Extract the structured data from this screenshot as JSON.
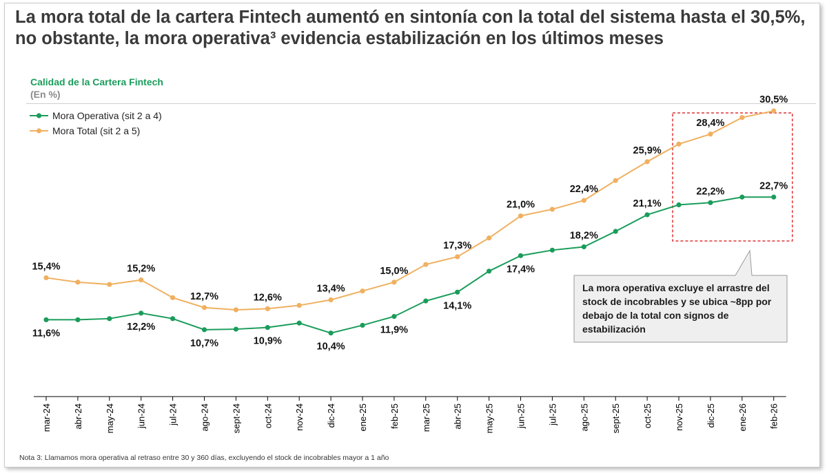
{
  "headline": "La mora total de la cartera Fintech aumentó en sintonía con la total del sistema hasta el 30,5%, no obstante, la mora operativa³  evidencia estabilización en los últimos meses",
  "subtitle": "Calidad de la Cartera Fintech",
  "unit": "(En %)",
  "footnote": "Nota 3: Llamamos mora operativa al retraso entre 30 y 360 días, excluyendo el stock de incobrables mayor a 1 año",
  "callout": {
    "lines": [
      "La mora operativa excluye el  arrastre del",
      "stock de incobrables y se ubica ~8pp por",
      "debajo de la total con signos de",
      "estabilización"
    ]
  },
  "colors": {
    "operativa": "#1a9c5b",
    "total": "#f0b060",
    "highlight": "#e03030"
  },
  "chart_data": {
    "type": "line",
    "title": "Calidad de la Cartera Fintech",
    "ylabel": "(En %)",
    "legend_position": "top-left",
    "grid": false,
    "categories": [
      "mar-24",
      "abr-24",
      "may-24",
      "jun-24",
      "jul-24",
      "ago-24",
      "sept-24",
      "oct-24",
      "nov-24",
      "dic-24",
      "ene-25",
      "feb-25",
      "mar-25",
      "abr-25",
      "may-25",
      "jun-25",
      "jul-25",
      "ago-25",
      "sept-25",
      "oct-25",
      "nov-25",
      "dic-25",
      "ene-26",
      "feb-26"
    ],
    "series": [
      {
        "name": "Mora Operativa (sit 2 a 4)",
        "values": [
          11.6,
          11.6,
          11.7,
          12.2,
          11.7,
          10.7,
          10.75,
          10.9,
          11.3,
          10.4,
          11.1,
          11.9,
          13.3,
          14.1,
          16.0,
          17.4,
          17.9,
          18.2,
          19.6,
          21.1,
          22.0,
          22.2,
          22.7,
          22.7
        ],
        "labels": [
          [
            "0",
            "11,6%"
          ],
          [
            "3",
            "12,2%"
          ],
          [
            "5",
            "10,7%"
          ],
          [
            "7",
            "10,9%"
          ],
          [
            "9",
            "10,4%"
          ],
          [
            "11",
            "11,9%"
          ],
          [
            "13",
            "14,1%"
          ],
          [
            "15",
            "17,4%"
          ],
          [
            "17",
            "18,2%"
          ],
          [
            "19",
            "21,1%"
          ],
          [
            "21",
            "22,2%"
          ],
          [
            "23",
            "22,7%"
          ]
        ]
      },
      {
        "name": "Mora Total (sit 2 a 5)",
        "values": [
          15.4,
          15.0,
          14.8,
          15.2,
          13.6,
          12.7,
          12.5,
          12.6,
          12.9,
          13.4,
          14.2,
          15.0,
          16.6,
          17.3,
          19.0,
          21.0,
          21.6,
          22.4,
          24.2,
          25.9,
          27.5,
          28.4,
          29.9,
          30.5
        ],
        "labels": [
          [
            "0",
            "15,4%"
          ],
          [
            "3",
            "15,2%"
          ],
          [
            "5",
            "12,7%"
          ],
          [
            "7",
            "12,6%"
          ],
          [
            "9",
            "13,4%"
          ],
          [
            "11",
            "15,0%"
          ],
          [
            "13",
            "17,3%"
          ],
          [
            "15",
            "21,0%"
          ],
          [
            "17",
            "22,4%"
          ],
          [
            "19",
            "25,9%"
          ],
          [
            "21",
            "28,4%"
          ],
          [
            "23",
            "30,5%"
          ]
        ]
      }
    ],
    "highlight_range": [
      "nov-25",
      "feb-26"
    ]
  }
}
